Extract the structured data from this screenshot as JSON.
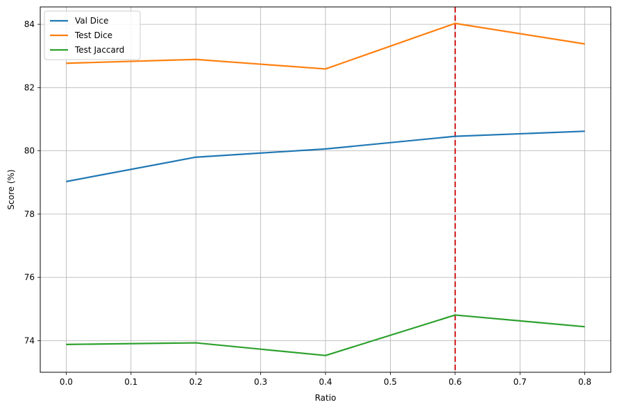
{
  "chart_data": {
    "type": "line",
    "x": [
      0.0,
      0.2,
      0.4,
      0.6,
      0.8
    ],
    "series": [
      {
        "name": "Val Dice",
        "values": [
          79.03,
          79.8,
          80.06,
          80.46,
          80.62
        ],
        "color": "#1f77b4"
      },
      {
        "name": "Test Dice",
        "values": [
          82.77,
          82.89,
          82.59,
          84.03,
          83.38
        ],
        "color": "#ff7f0e"
      },
      {
        "name": "Test Jaccard",
        "values": [
          73.88,
          73.93,
          73.53,
          74.81,
          74.44
        ],
        "color": "#2ca02c"
      }
    ],
    "vline": {
      "x": 0.6,
      "color": "#d62728",
      "style": "dashed"
    },
    "xlabel": "Ratio",
    "ylabel": "Score (%)",
    "xlim": [
      -0.04,
      0.84
    ],
    "ylim": [
      73.0,
      84.55
    ],
    "xticks": [
      0.0,
      0.1,
      0.2,
      0.3,
      0.4,
      0.5,
      0.6,
      0.7,
      0.8
    ],
    "xtick_labels": [
      "0.0",
      "0.1",
      "0.2",
      "0.3",
      "0.4",
      "0.5",
      "0.6",
      "0.7",
      "0.8"
    ],
    "yticks": [
      74,
      76,
      78,
      80,
      82,
      84
    ],
    "ytick_labels": [
      "74",
      "76",
      "78",
      "80",
      "82",
      "84"
    ],
    "grid": true,
    "legend_position": "top-left"
  }
}
